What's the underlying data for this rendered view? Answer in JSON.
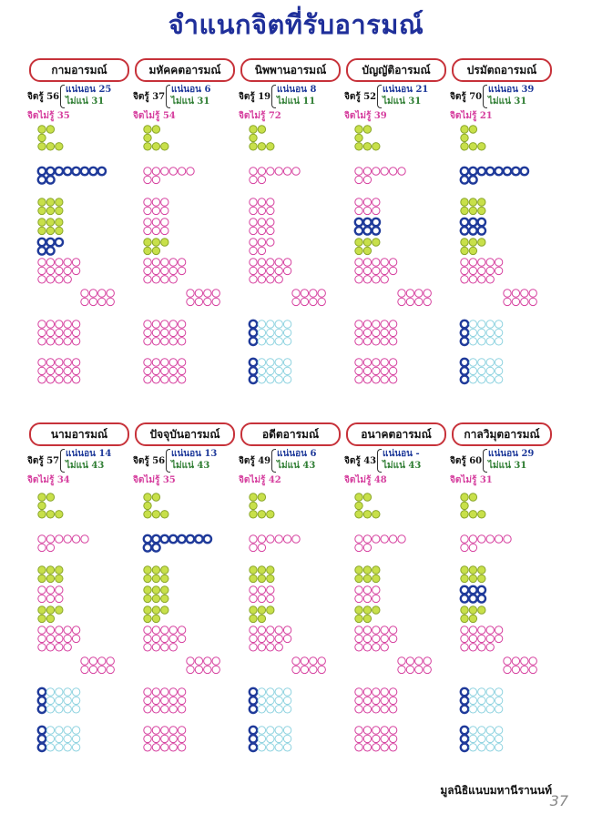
{
  "title": "จำแนกจิตที่รับอารมณ์",
  "footer": "มูลนิธิแนบมหานีรานนท์",
  "page_number": "37",
  "colors": {
    "blue": "#1f3a9a",
    "green_fill": "#c8e04a",
    "pink": "#d6409f",
    "cyan": "#8fd3e0",
    "red_frame": "#c7323a"
  },
  "cards": [
    {
      "label": "กามอารมณ์",
      "known": "จิตรู้ 56",
      "certain": "แน่นอน 25",
      "uncertain": "ไม่แน่ 31",
      "unknown": "จิตไม่รู้ 35"
    },
    {
      "label": "มหัคคตอารมณ์",
      "known": "จิตรู้ 37",
      "certain": "แน่นอน 6",
      "uncertain": "ไม่แน่ 31",
      "unknown": "จิตไม่รู้ 54"
    },
    {
      "label": "นิพพานอารมณ์",
      "known": "จิตรู้ 19",
      "certain": "แน่นอน 8",
      "uncertain": "ไม่แน่ 11",
      "unknown": "จิตไม่รู้ 72"
    },
    {
      "label": "บัญญัติอารมณ์",
      "known": "จิตรู้ 52",
      "certain": "แน่นอน 21",
      "uncertain": "ไม่แน่ 31",
      "unknown": "จิตไม่รู้ 39"
    },
    {
      "label": "ปรมัตถอารมณ์",
      "known": "จิตรู้ 70",
      "certain": "แน่นอน 39",
      "uncertain": "ไม่แน่ 31",
      "unknown": "จิตไม่รู้ 21"
    },
    {
      "label": "นามอารมณ์",
      "known": "จิตรู้ 57",
      "certain": "แน่นอน 14",
      "uncertain": "ไม่แน่ 43",
      "unknown": "จิตไม่รู้ 34"
    },
    {
      "label": "ปัจจุบันอารมณ์",
      "known": "จิตรู้ 56",
      "certain": "แน่นอน 13",
      "uncertain": "ไม่แน่ 43",
      "unknown": "จิตไม่รู้ 35"
    },
    {
      "label": "อดีตอารมณ์",
      "known": "จิตรู้ 49",
      "certain": "แน่นอน 6",
      "uncertain": "ไม่แน่ 43",
      "unknown": "จิตไม่รู้ 42"
    },
    {
      "label": "อนาคตอารมณ์",
      "known": "จิตรู้ 43",
      "certain": "แน่นอน -",
      "uncertain": "ไม่แน่ 43",
      "unknown": "จิตไม่รู้ 48"
    },
    {
      "label": "กาลวิมุตอารมณ์",
      "known": "จิตรู้ 60",
      "certain": "แน่นอน 29",
      "uncertain": "ไม่แน่ 31",
      "unknown": "จิตไม่รู้ 31"
    }
  ]
}
